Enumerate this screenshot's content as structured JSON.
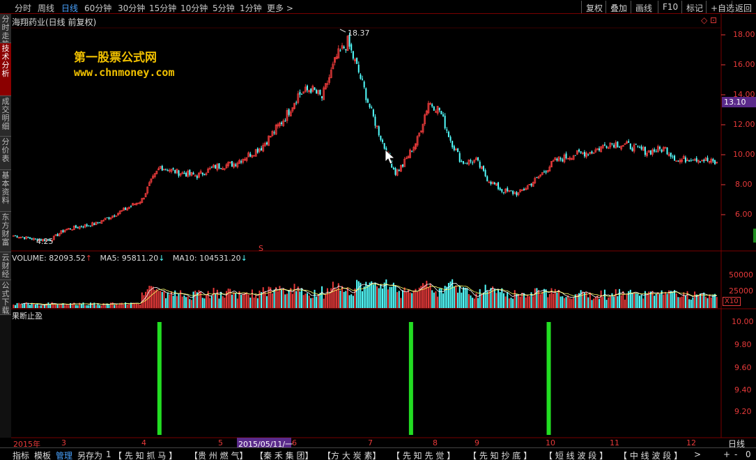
{
  "topnav": {
    "items": [
      "分时",
      "周线",
      "日线",
      "60分钟",
      "30分钟",
      "15分钟",
      "10分钟",
      "5分钟",
      "1分钟",
      "更多 >"
    ],
    "active_index": 2
  },
  "toolbar_right": [
    "复权",
    "叠加",
    "画线",
    "F10",
    "标记",
    "+自选",
    "返回"
  ],
  "side_tabs": [
    "分时走势",
    "技术分析",
    "成交明细",
    "分价表",
    "基本资料",
    "东方财富",
    "云财经",
    "公式下载"
  ],
  "side_active_index": 1,
  "stock_title": "海翔药业(日线 前复权)",
  "watermark": {
    "line1": "第一股票公式网",
    "line2": "www.chnmoney.com"
  },
  "price_axis": [
    "18.00",
    "16.00",
    "14.00",
    "12.00",
    "10.00",
    "8.00",
    "6.00"
  ],
  "current_price": "13.10",
  "high_label": "18.37",
  "low_label": "4.25",
  "marker_s": "S",
  "volume": {
    "label": "VOLUME: 82093.52",
    "ma5": "MA5: 95811.20",
    "ma10": "MA10: 104531.20",
    "axis": [
      "50000",
      "25000"
    ],
    "unit": "X10"
  },
  "indicator": {
    "name": "果断止盈",
    "axis": [
      "10.00",
      "9.80",
      "9.60",
      "9.40",
      "9.20"
    ]
  },
  "date_axis": {
    "labels": [
      "2015年",
      "3",
      "4",
      "5",
      "6",
      "7",
      "8",
      "9",
      "10",
      "11",
      "12"
    ],
    "selected": "2015/05/11/一",
    "period": "日线"
  },
  "bottom_tabs": [
    "指标",
    "模板",
    "管理",
    "另存为",
    "1",
    "【 先 知 抓 马 】",
    "【贵 州 燃 气】",
    "【秦 禾 集 团】",
    "【方 大 炭 素】",
    "【 先 知 先 觉 】",
    "【 先 知 抄 底 】",
    "【 短 线 波 段 】",
    "【 中 线 波 段 】",
    ">"
  ],
  "bottom_active_index": 2,
  "bottom_extra": [
    "+",
    "-",
    "0"
  ],
  "colors": {
    "up": "#e83a3a",
    "down": "#53ffff",
    "grid": "#7a0000",
    "signal": "#22dd22",
    "accent": "#4aa3ff",
    "watermark": "#f0c000"
  },
  "chart_data": {
    "type": "candlestick",
    "price_range": [
      4.0,
      19.0
    ],
    "key_points": [
      {
        "i": 0,
        "v": 4.6
      },
      {
        "i": 12,
        "v": 4.35
      },
      {
        "i": 20,
        "v": 4.3
      },
      {
        "i": 28,
        "v": 5.0
      },
      {
        "i": 45,
        "v": 5.4
      },
      {
        "i": 60,
        "v": 6.3
      },
      {
        "i": 70,
        "v": 7.0
      },
      {
        "i": 74,
        "v": 8.0
      },
      {
        "i": 80,
        "v": 9.2
      },
      {
        "i": 90,
        "v": 8.8
      },
      {
        "i": 100,
        "v": 8.6
      },
      {
        "i": 110,
        "v": 9.2
      },
      {
        "i": 120,
        "v": 9.4
      },
      {
        "i": 135,
        "v": 10.5
      },
      {
        "i": 148,
        "v": 12.5
      },
      {
        "i": 155,
        "v": 14.0
      },
      {
        "i": 162,
        "v": 14.4
      },
      {
        "i": 168,
        "v": 13.8
      },
      {
        "i": 176,
        "v": 16.5
      },
      {
        "i": 182,
        "v": 17.5
      },
      {
        "i": 188,
        "v": 15.5
      },
      {
        "i": 195,
        "v": 12.8
      },
      {
        "i": 202,
        "v": 10.5
      },
      {
        "i": 208,
        "v": 8.8
      },
      {
        "i": 212,
        "v": 9.3
      },
      {
        "i": 220,
        "v": 11.0
      },
      {
        "i": 226,
        "v": 13.5
      },
      {
        "i": 232,
        "v": 13.0
      },
      {
        "i": 238,
        "v": 11.0
      },
      {
        "i": 244,
        "v": 9.5
      },
      {
        "i": 252,
        "v": 9.6
      },
      {
        "i": 258,
        "v": 8.4
      },
      {
        "i": 266,
        "v": 7.6
      },
      {
        "i": 275,
        "v": 7.4
      },
      {
        "i": 285,
        "v": 8.4
      },
      {
        "i": 295,
        "v": 9.6
      },
      {
        "i": 305,
        "v": 10.0
      },
      {
        "i": 315,
        "v": 10.2
      },
      {
        "i": 325,
        "v": 10.8
      },
      {
        "i": 335,
        "v": 10.6
      },
      {
        "i": 345,
        "v": 10.2
      },
      {
        "i": 355,
        "v": 10.4
      },
      {
        "i": 362,
        "v": 9.6
      },
      {
        "i": 370,
        "v": 9.8
      },
      {
        "i": 378,
        "v": 9.6
      },
      {
        "i": 383,
        "v": 9.4
      }
    ],
    "signals": [
      80,
      217,
      292
    ]
  }
}
